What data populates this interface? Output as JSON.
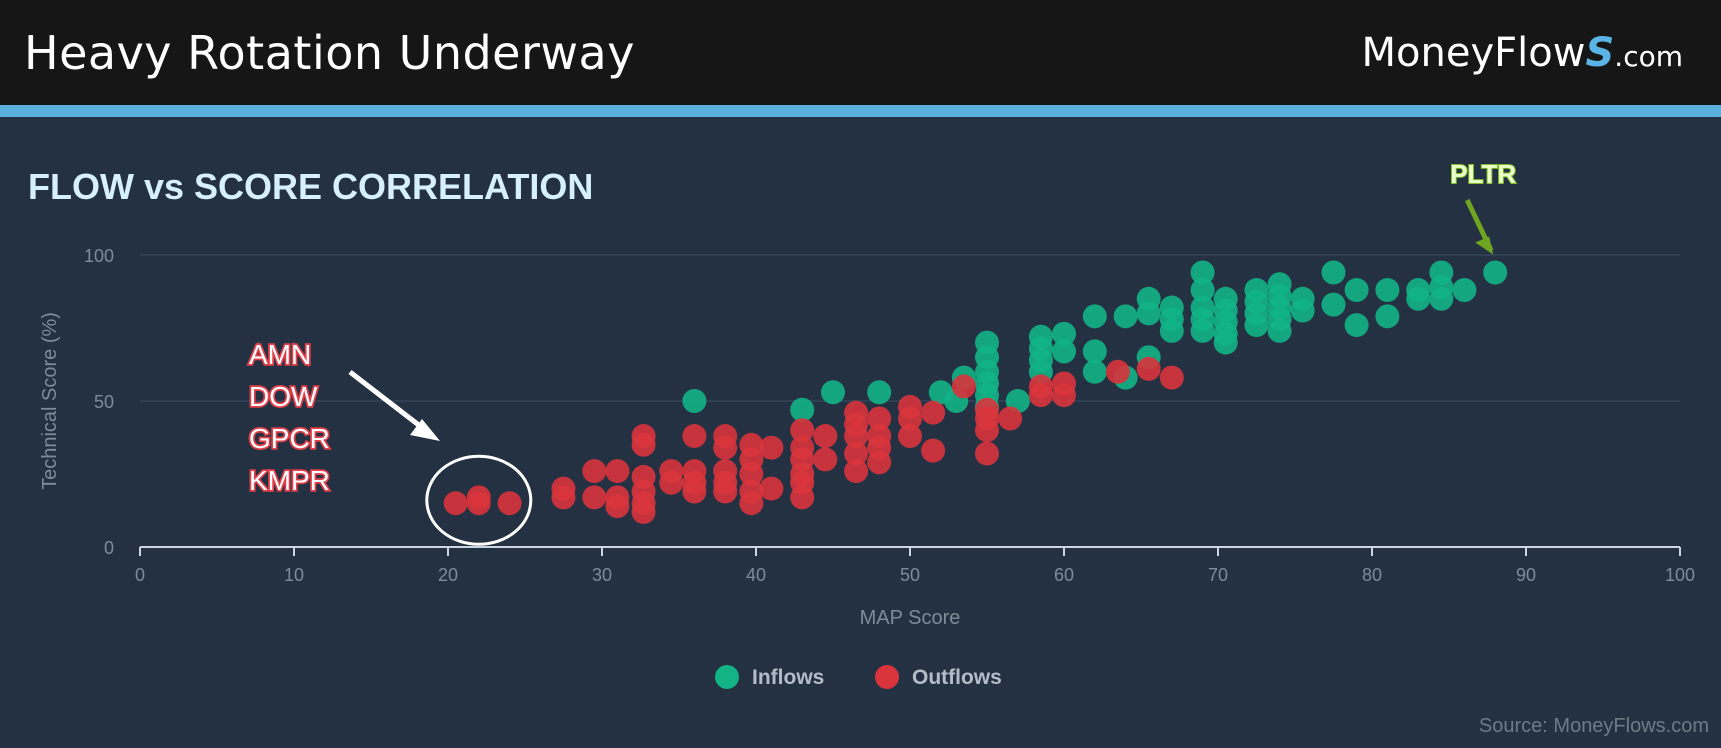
{
  "header": {
    "title": "Heavy Rotation Underway"
  },
  "logo": {
    "main": "MoneyFlow",
    "s": "S",
    "suffix": ".com"
  },
  "source": "Source: MoneyFlows.com",
  "colors": {
    "inflows": "#12b486",
    "outflows": "#d9343c",
    "background": "#233142",
    "accent": "#5ab0dc"
  },
  "chart_data": {
    "type": "scatter",
    "title": "FLOW vs SCORE CORRELATION",
    "xlabel": "MAP Score",
    "ylabel": "Technical Score (%)",
    "xlim": [
      0,
      100
    ],
    "ylim": [
      0,
      100
    ],
    "xticks": [
      0,
      10,
      20,
      30,
      40,
      50,
      60,
      70,
      80,
      90,
      100
    ],
    "yticks": [
      0,
      50,
      100
    ],
    "grid": true,
    "legend": "bottom-center",
    "annotations": [
      {
        "text": "PLTR",
        "x": 88,
        "y": 94
      },
      {
        "text": "AMN\nDOW\nGPCR\nKMPR",
        "x": 22,
        "y": 16
      }
    ],
    "series": [
      {
        "name": "Inflows",
        "points": [
          [
            36,
            50
          ],
          [
            43,
            47
          ],
          [
            45,
            53
          ],
          [
            48,
            53
          ],
          [
            52,
            53
          ],
          [
            53,
            50
          ],
          [
            53.5,
            58
          ],
          [
            55,
            70
          ],
          [
            55,
            65
          ],
          [
            55,
            60
          ],
          [
            55,
            56
          ],
          [
            55,
            52
          ],
          [
            55,
            48
          ],
          [
            57,
            50
          ],
          [
            58.5,
            72
          ],
          [
            58.5,
            68
          ],
          [
            58.5,
            64
          ],
          [
            58.5,
            60
          ],
          [
            60,
            73
          ],
          [
            60,
            67
          ],
          [
            62,
            79
          ],
          [
            62,
            67
          ],
          [
            62,
            60
          ],
          [
            64,
            79
          ],
          [
            64,
            58
          ],
          [
            65.5,
            85
          ],
          [
            65.5,
            80
          ],
          [
            65.5,
            65
          ],
          [
            67,
            82
          ],
          [
            67,
            78
          ],
          [
            67,
            74
          ],
          [
            69,
            94
          ],
          [
            69,
            88
          ],
          [
            69,
            82
          ],
          [
            69,
            78
          ],
          [
            69,
            74
          ],
          [
            70.5,
            85
          ],
          [
            70.5,
            81
          ],
          [
            70.5,
            77
          ],
          [
            70.5,
            73
          ],
          [
            70.5,
            70
          ],
          [
            72.5,
            88
          ],
          [
            72.5,
            84
          ],
          [
            72.5,
            80
          ],
          [
            72.5,
            76
          ],
          [
            74,
            90
          ],
          [
            74,
            86
          ],
          [
            74,
            82
          ],
          [
            74,
            78
          ],
          [
            74,
            74
          ],
          [
            75.5,
            85
          ],
          [
            75.5,
            81
          ],
          [
            77.5,
            94
          ],
          [
            77.5,
            83
          ],
          [
            79,
            88
          ],
          [
            79,
            76
          ],
          [
            81,
            88
          ],
          [
            81,
            79
          ],
          [
            83,
            88
          ],
          [
            83,
            85
          ],
          [
            84.5,
            94
          ],
          [
            84.5,
            89
          ],
          [
            84.5,
            85
          ],
          [
            86,
            88
          ],
          [
            88,
            94
          ]
        ]
      },
      {
        "name": "Outflows",
        "points": [
          [
            20.5,
            15
          ],
          [
            22,
            17
          ],
          [
            22,
            15
          ],
          [
            24,
            15
          ],
          [
            27.5,
            20
          ],
          [
            27.5,
            17
          ],
          [
            29.5,
            26
          ],
          [
            29.5,
            17
          ],
          [
            31,
            26
          ],
          [
            31,
            17
          ],
          [
            31,
            14
          ],
          [
            32.7,
            38
          ],
          [
            32.7,
            35
          ],
          [
            32.7,
            24
          ],
          [
            32.7,
            19
          ],
          [
            32.7,
            15
          ],
          [
            32.7,
            12
          ],
          [
            34.5,
            26
          ],
          [
            34.5,
            22
          ],
          [
            36,
            38
          ],
          [
            36,
            26
          ],
          [
            36,
            22
          ],
          [
            36,
            19
          ],
          [
            38,
            38
          ],
          [
            38,
            34
          ],
          [
            38,
            26
          ],
          [
            38,
            22
          ],
          [
            38,
            19
          ],
          [
            39.7,
            35
          ],
          [
            39.7,
            30
          ],
          [
            39.7,
            25
          ],
          [
            39.7,
            19
          ],
          [
            39.7,
            15
          ],
          [
            41,
            34
          ],
          [
            41,
            20
          ],
          [
            43,
            40
          ],
          [
            43,
            34
          ],
          [
            43,
            30
          ],
          [
            43,
            25
          ],
          [
            43,
            22
          ],
          [
            43,
            17
          ],
          [
            44.5,
            38
          ],
          [
            44.5,
            30
          ],
          [
            46.5,
            46
          ],
          [
            46.5,
            42
          ],
          [
            46.5,
            38
          ],
          [
            46.5,
            32
          ],
          [
            46.5,
            26
          ],
          [
            48,
            44
          ],
          [
            48,
            38
          ],
          [
            48,
            34
          ],
          [
            48,
            29
          ],
          [
            50,
            48
          ],
          [
            50,
            44
          ],
          [
            50,
            38
          ],
          [
            51.5,
            46
          ],
          [
            51.5,
            33
          ],
          [
            53.5,
            55
          ],
          [
            55,
            47
          ],
          [
            55,
            44
          ],
          [
            55,
            40
          ],
          [
            55,
            32
          ],
          [
            56.5,
            44
          ],
          [
            58.5,
            55
          ],
          [
            58.5,
            52
          ],
          [
            60,
            56
          ],
          [
            60,
            52
          ],
          [
            63.5,
            60
          ],
          [
            65.5,
            61
          ],
          [
            67,
            58
          ]
        ]
      }
    ]
  }
}
